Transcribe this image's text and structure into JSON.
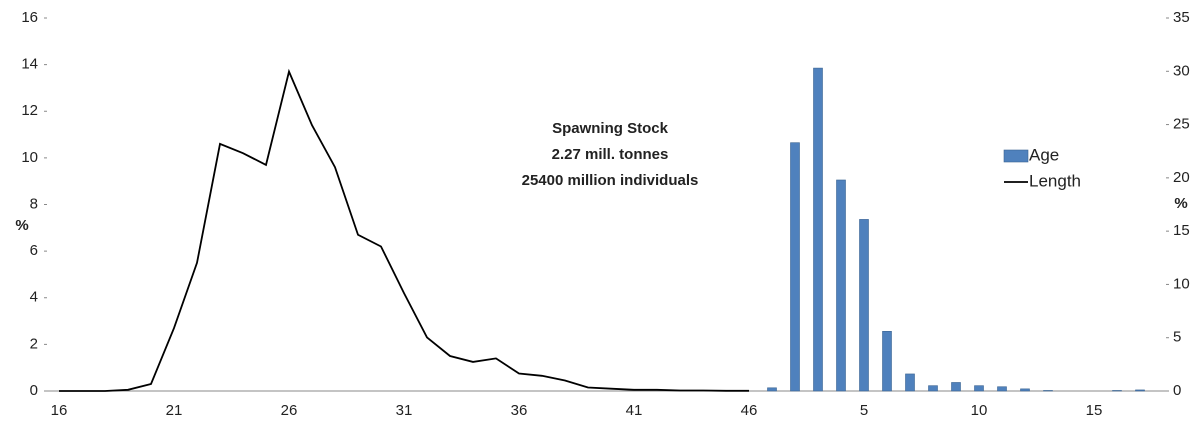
{
  "chart_data": {
    "type": "combo",
    "annotation": [
      "Spawning Stock",
      "2.27 mill. tonnes",
      "25400 million individuals"
    ],
    "ylabel": "%",
    "y2label": "%",
    "categories": [
      "16",
      null,
      null,
      null,
      null,
      "21",
      null,
      null,
      null,
      null,
      "26",
      null,
      null,
      null,
      null,
      "31",
      null,
      null,
      null,
      null,
      "36",
      null,
      null,
      null,
      null,
      "41",
      null,
      null,
      null,
      null,
      "46",
      null,
      null,
      null,
      null,
      "5",
      null,
      null,
      null,
      null,
      "10",
      null,
      null,
      null,
      null,
      "15",
      null,
      null
    ],
    "series": [
      {
        "name": "Age",
        "kind": "bar",
        "axis": "y2",
        "color": "#4f81bd",
        "values": [
          null,
          null,
          null,
          null,
          null,
          null,
          null,
          null,
          null,
          null,
          null,
          null,
          null,
          null,
          null,
          null,
          null,
          null,
          null,
          null,
          null,
          null,
          null,
          null,
          null,
          null,
          null,
          null,
          null,
          null,
          null,
          0.3,
          23.3,
          30.3,
          19.8,
          16.1,
          5.6,
          1.6,
          0.5,
          0.8,
          0.5,
          0.4,
          0.2,
          0.05,
          0,
          0,
          0.05,
          0.1
        ]
      },
      {
        "name": "Length",
        "kind": "line",
        "axis": "y",
        "color": "#000000",
        "values": [
          0,
          0,
          0,
          0.05,
          0.3,
          2.7,
          5.5,
          10.6,
          10.2,
          9.7,
          13.7,
          11.4,
          9.6,
          6.7,
          6.2,
          4.2,
          2.3,
          1.5,
          1.25,
          1.4,
          0.75,
          0.65,
          0.45,
          0.15,
          0.1,
          0.05,
          0.05,
          0.02,
          0.02,
          0.01,
          0.01,
          null,
          null,
          null,
          null,
          null,
          null,
          null,
          null,
          null,
          null,
          null,
          null,
          null,
          null,
          null,
          null,
          null
        ]
      }
    ],
    "ylim": [
      0,
      16
    ],
    "yticks": [
      0,
      2,
      4,
      6,
      8,
      10,
      12,
      14,
      16
    ],
    "y2lim": [
      0,
      35
    ],
    "y2ticks": [
      0,
      5,
      10,
      15,
      20,
      25,
      30,
      35
    ],
    "grid": false,
    "legend": "right"
  }
}
